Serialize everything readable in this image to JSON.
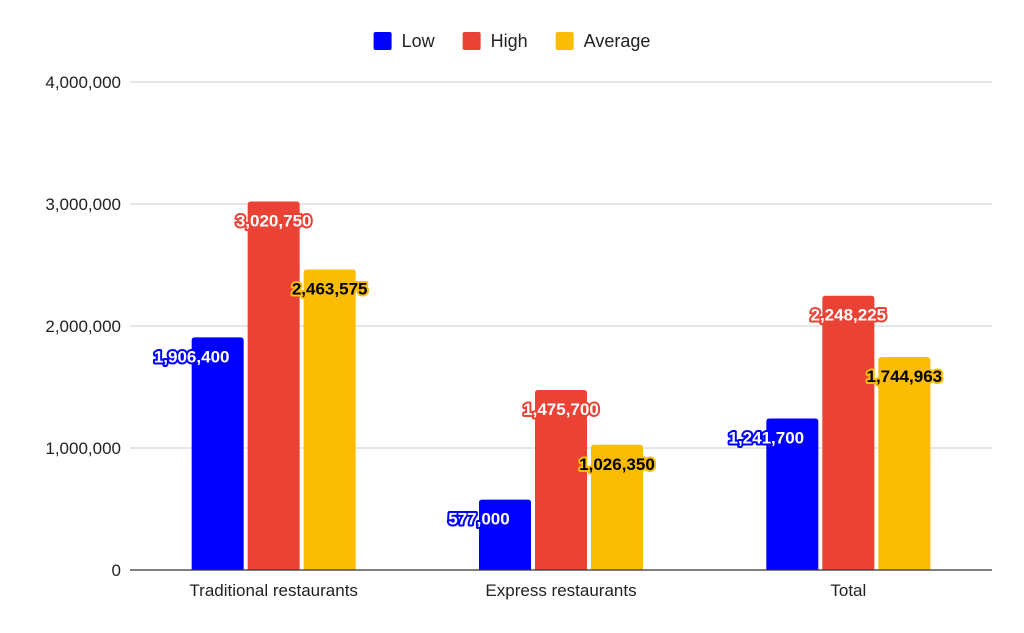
{
  "chart_data": {
    "type": "bar",
    "categories": [
      "Traditional restaurants",
      "Express restaurants",
      "Total"
    ],
    "series": [
      {
        "name": "Low",
        "values": [
          1906400,
          577000,
          1241700
        ],
        "labels": [
          "1,906,400",
          "577,000",
          "1,241,700"
        ],
        "color": "#0000ff",
        "label_text_color": "#ffffff",
        "label_outline_color": "#0000ff"
      },
      {
        "name": "High",
        "values": [
          3020750,
          1475700,
          2248225
        ],
        "labels": [
          "3,020,750",
          "1,475,700",
          "2,248,225"
        ],
        "color": "#ea4335",
        "label_text_color": "#ffffff",
        "label_outline_color": "#ea4335"
      },
      {
        "name": "Average",
        "values": [
          2463575,
          1026350,
          1744963
        ],
        "labels": [
          "2,463,575",
          "1,026,350",
          "1,744,963"
        ],
        "color": "#fbbc04",
        "label_text_color": "#000000",
        "label_outline_color": "#fbbc04"
      }
    ],
    "ylim": [
      0,
      4000000
    ],
    "yticks": [
      0,
      1000000,
      2000000,
      3000000,
      4000000
    ],
    "ytick_labels": [
      "0",
      "1,000,000",
      "2,000,000",
      "3,000,000",
      "4,000,000"
    ],
    "grid": true,
    "legend_position": "top-center",
    "title": "",
    "xlabel": "",
    "ylabel": ""
  }
}
